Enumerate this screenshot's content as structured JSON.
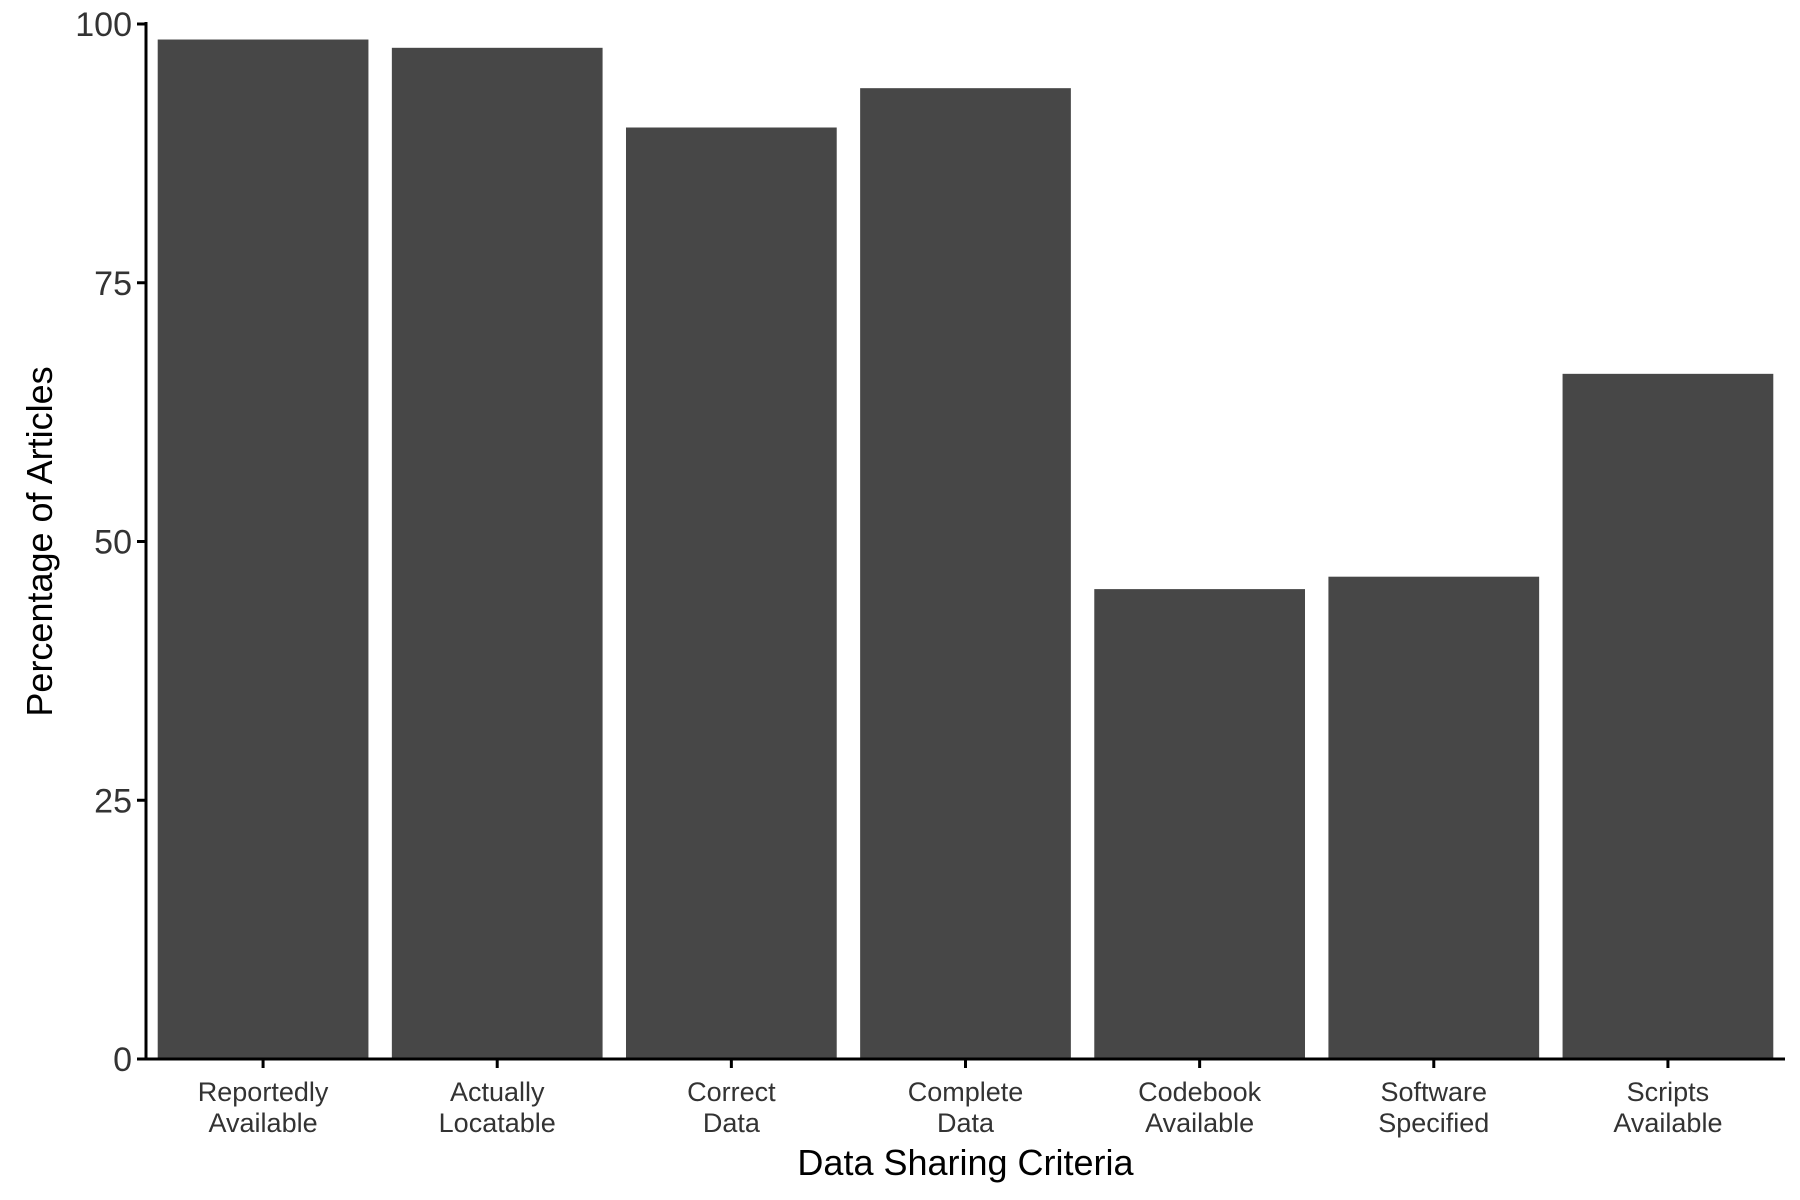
{
  "chart_data": {
    "type": "bar",
    "title": "",
    "xlabel": "Data Sharing Criteria",
    "ylabel": "Percentage of Articles",
    "categories": [
      [
        "Reportedly",
        "Available"
      ],
      [
        "Actually",
        "Locatable"
      ],
      [
        "Correct",
        "Data"
      ],
      [
        "Complete",
        "Data"
      ],
      [
        "Codebook",
        "Available"
      ],
      [
        "Software",
        "Specified"
      ],
      [
        "Scripts",
        "Available"
      ]
    ],
    "values": [
      98.5,
      97.7,
      90.0,
      93.8,
      45.4,
      46.6,
      66.2
    ],
    "ylim": [
      0,
      100
    ],
    "yticks": [
      0,
      25,
      50,
      75,
      100
    ],
    "grid": false,
    "legend": "none",
    "bar_color": "#474747",
    "axis_color": "#000000",
    "tick_label_color": "#333333"
  }
}
